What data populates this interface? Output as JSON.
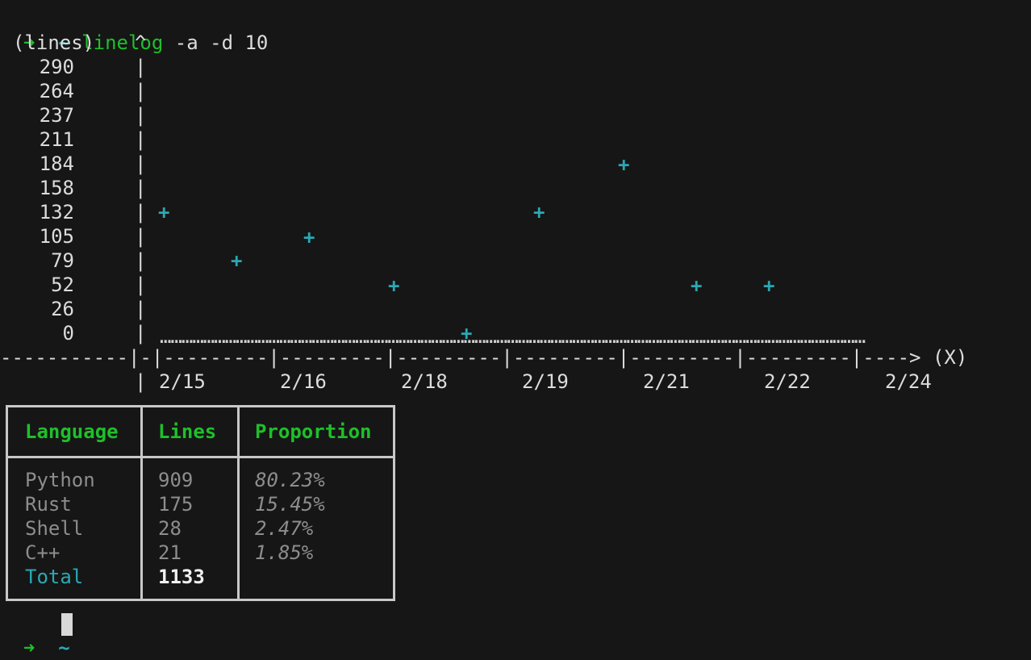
{
  "prompt": {
    "arrow": "➜",
    "dir": "~",
    "command": "linelog",
    "args": "-a -d 10"
  },
  "chart_data": {
    "type": "scatter",
    "ylabel": "(lines)",
    "y_ticks": [
      "290",
      "264",
      "237",
      "211",
      "184",
      "158",
      "132",
      "105",
      "79",
      "52",
      "26",
      "0"
    ],
    "x_ticks": [
      "2/15",
      "2/16",
      "2/18",
      "2/19",
      "2/21",
      "2/22",
      "2/24"
    ],
    "xlabel": "(X)",
    "x_axis_line": "-----------|-|---------|---------|---------|---------|---------|---------|----> (X)",
    "marker": "+",
    "ylim": [
      0,
      290
    ],
    "points": [
      {
        "x": "2/15",
        "y": 132
      },
      {
        "x": "2/16",
        "y": 79
      },
      {
        "x": "2/17",
        "y": 105
      },
      {
        "x": "2/18",
        "y": 52
      },
      {
        "x": "2/18",
        "y": 0
      },
      {
        "x": "2/19",
        "y": 132
      },
      {
        "x": "2/20",
        "y": 184
      },
      {
        "x": "2/21",
        "y": 52
      },
      {
        "x": "2/22",
        "y": 52
      }
    ]
  },
  "table": {
    "headers": [
      "Language",
      "Lines",
      "Proportion"
    ],
    "rows": [
      {
        "language": "Python",
        "lines": "909",
        "proportion": "80.23%"
      },
      {
        "language": "Rust",
        "lines": "175",
        "proportion": "15.45%"
      },
      {
        "language": "Shell",
        "lines": "28",
        "proportion": "2.47%"
      },
      {
        "language": "C++",
        "lines": "21",
        "proportion": "1.85%"
      }
    ],
    "total": {
      "label": "Total",
      "lines": "1133"
    }
  },
  "prompt2": {
    "arrow": "➜",
    "dir": "~"
  }
}
